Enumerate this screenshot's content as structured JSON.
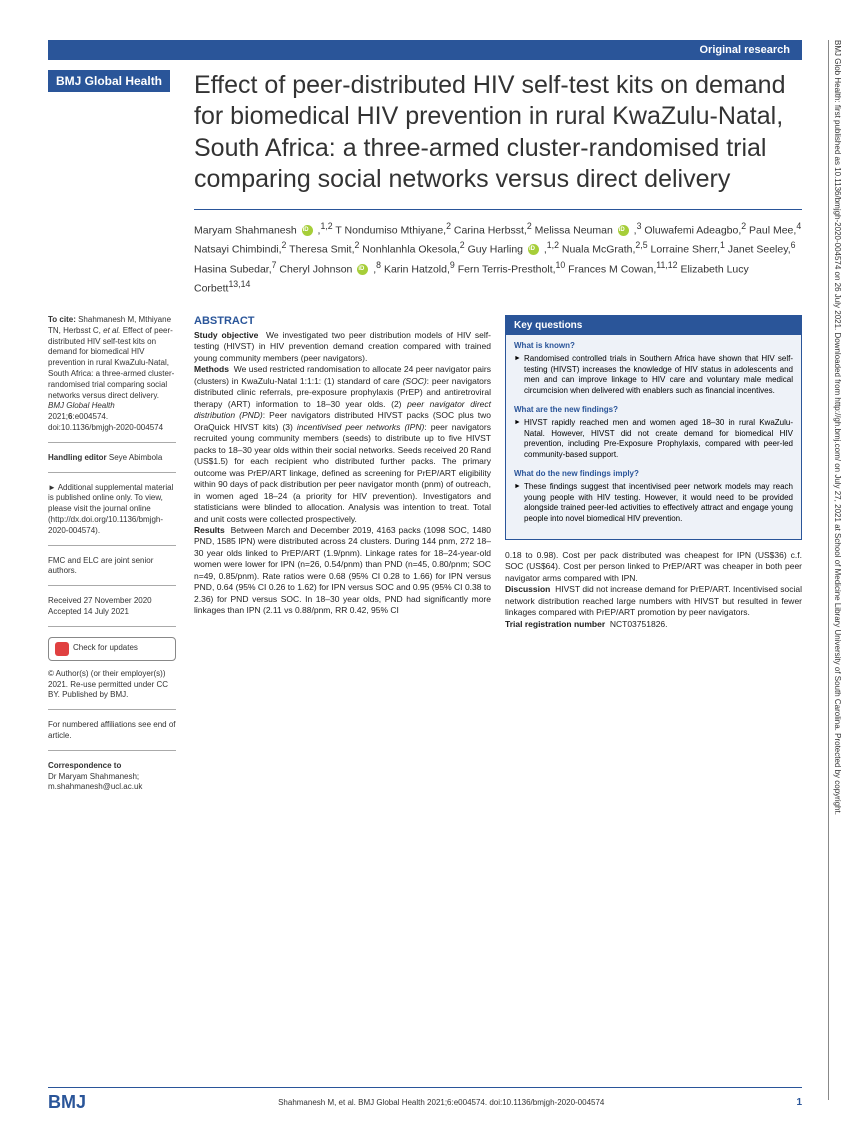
{
  "header": {
    "category": "Original research"
  },
  "journal": {
    "badge": "BMJ Global Health",
    "logo": "BMJ"
  },
  "title": "Effect of peer-distributed HIV self-test kits on demand for biomedical HIV prevention in rural KwaZulu-Natal, South Africa: a three-armed cluster-randomised trial comparing social networks versus direct delivery",
  "authors_html": "Maryam Shahmanesh <span class='orcid'></span> ,<sup>1,2</sup> T Nondumiso Mthiyane,<sup>2</sup> Carina Herbsst,<sup>2</sup> Melissa Neuman <span class='orcid'></span> ,<sup>3</sup> Oluwafemi Adeagbo,<sup>2</sup> Paul Mee,<sup>4</sup> Natsayi Chimbindi,<sup>2</sup> Theresa Smit,<sup>2</sup> Nonhlanhla Okesola,<sup>2</sup> Guy Harling <span class='orcid'></span> ,<sup>1,2</sup> Nuala McGrath,<sup>2,5</sup> Lorraine Sherr,<sup>1</sup> Janet Seeley,<sup>6</sup> Hasina Subedar,<sup>7</sup> Cheryl Johnson <span class='orcid'></span> ,<sup>8</sup> Karin Hatzold,<sup>9</sup> Fern Terris-Prestholt,<sup>10</sup> Frances M Cowan,<sup>11,12</sup> Elizabeth Lucy Corbett<sup>13,14</sup>",
  "sidebar": {
    "citation": "<b>To cite:</b> Shahmanesh M, Mthiyane TN, Herbsst C, <i>et al.</i> Effect of peer-distributed HIV self-test kits on demand for biomedical HIV prevention in rural KwaZulu-Natal, South Africa: a three-armed cluster-randomised trial comparing social networks versus direct delivery. <i>BMJ Global Health</i> 2021;<b>6</b>:e004574. doi:10.1136/bmjgh-2020-004574",
    "editor": "<b>Handling editor</b> Seye Abimbola",
    "supplement": "<span class='arrow'>►</span> Additional supplemental material is published online only. To view, please visit the journal online (http://dx.doi.org/10.1136/bmjgh-2020-004574).",
    "senior": "FMC and ELC are joint senior authors.",
    "dates": "Received 27 November 2020<br>Accepted 14 July 2021",
    "check": "Check for updates",
    "license": "© Author(s) (or their employer(s)) 2021. Re-use permitted under CC BY. Published by BMJ.",
    "affiliations": "For numbered affiliations see end of article.",
    "correspondence": "<b>Correspondence to</b><br>Dr Maryam Shahmanesh;<br>m.shahmanesh@ucl.ac.uk"
  },
  "abstract": {
    "heading": "ABSTRACT",
    "objective_label": "Study objective",
    "objective": "We investigated two peer distribution models of HIV self-testing (HIVST) in HIV prevention demand creation compared with trained young community members (peer navigators).",
    "methods_label": "Methods",
    "methods": "We used restricted randomisation to allocate 24 peer navigator pairs (clusters) in KwaZulu-Natal 1:1:1: (1) standard of care <i>(SOC)</i>: peer navigators distributed clinic referrals, pre-exposure prophylaxis (PrEP) and antiretroviral therapy (ART) information to 18–30 year olds. (2) <i>peer navigator direct distribution (PND)</i>: Peer navigators distributed HIVST packs (SOC plus two OraQuick HIVST kits) (3) <i>incentivised peer networks (IPN)</i>: peer navigators recruited young community members (seeds) to distribute up to five HIVST packs to 18–30 year olds within their social networks. Seeds received 20 Rand (US$1.5) for each recipient who distributed further packs. The primary outcome was PrEP/ART linkage, defined as screening for PrEP/ART eligibility within 90 days of pack distribution per peer navigator month (pnm) of outreach, in women aged 18–24 (a priority for HIV prevention). Investigators and statisticians were blinded to allocation. Analysis was intention to treat. Total and unit costs were collected prospectively.",
    "results_label": "Results",
    "results": "Between March and December 2019, 4163 packs (1098 SOC, 1480 PND, 1585 IPN) were distributed across 24 clusters. During 144 pnm, 272 18–30 year olds linked to PrEP/ART (1.9/pnm). Linkage rates for 18–24-year-old women were lower for IPN (n=26, 0.54/pnm) than PND (n=45, 0.80/pnm; SOC n=49, 0.85/pnm). Rate ratios were 0.68 (95% CI 0.28 to 1.66) for IPN versus PND, 0.64 (95% CI 0.26 to 1.62) for IPN versus SOC and 0.95 (95% CI 0.38 to 2.36) for PND versus SOC. In 18–30 year olds, PND had significantly more linkages than IPN (2.11 vs 0.88/pnm, RR 0.42, 95% CI"
  },
  "key_questions": {
    "heading": "Key questions",
    "q1": "What is known?",
    "a1": "Randomised controlled trials in Southern Africa have shown that HIV self-testing (HIVST) increases the knowledge of HIV status in adolescents and men and can improve linkage to HIV care and voluntary male medical circumcision when delivered with enablers such as financial incentives.",
    "q2": "What are the new findings?",
    "a2": "HIVST rapidly reached men and women aged 18–30 in rural KwaZulu-Natal. However, HIVST did not create demand for biomedical HIV prevention, including Pre-Exposure Prophylaxis, compared with peer-led community-based support.",
    "q3": "What do the new findings imply?",
    "a3": "These findings suggest that incentivised peer network models may reach young people with HIV testing. However, it would need to be provided alongside trained peer-led activities to effectively attract and engage young people into novel biomedical HIV prevention."
  },
  "continuation": "0.18 to 0.98). Cost per pack distributed was cheapest for IPN (US$36) c.f. SOC (US$64). Cost per person linked to PrEP/ART was cheaper in both peer navigator arms compared with IPN.<br><b>Discussion</b>&nbsp; HIVST did not increase demand for PrEP/ART. Incentivised social network distribution reached large numbers with HIVST but resulted in fewer linkages compared with PrEP/ART promotion by peer navigators.<br><b>Trial registration number</b>&nbsp; NCT03751826.",
  "footer": {
    "citation": "Shahmanesh M, et al. BMJ Global Health 2021;6:e004574. doi:10.1136/bmjgh-2020-004574",
    "page": "1"
  },
  "watermark": "BMJ Glob Health: first published as 10.1136/bmjgh-2020-004574 on 26 July 2021. Downloaded from http://gh.bmj.com/ on July 27, 2021 at School of Medicine Library University of South Carolina. Protected by copyright."
}
